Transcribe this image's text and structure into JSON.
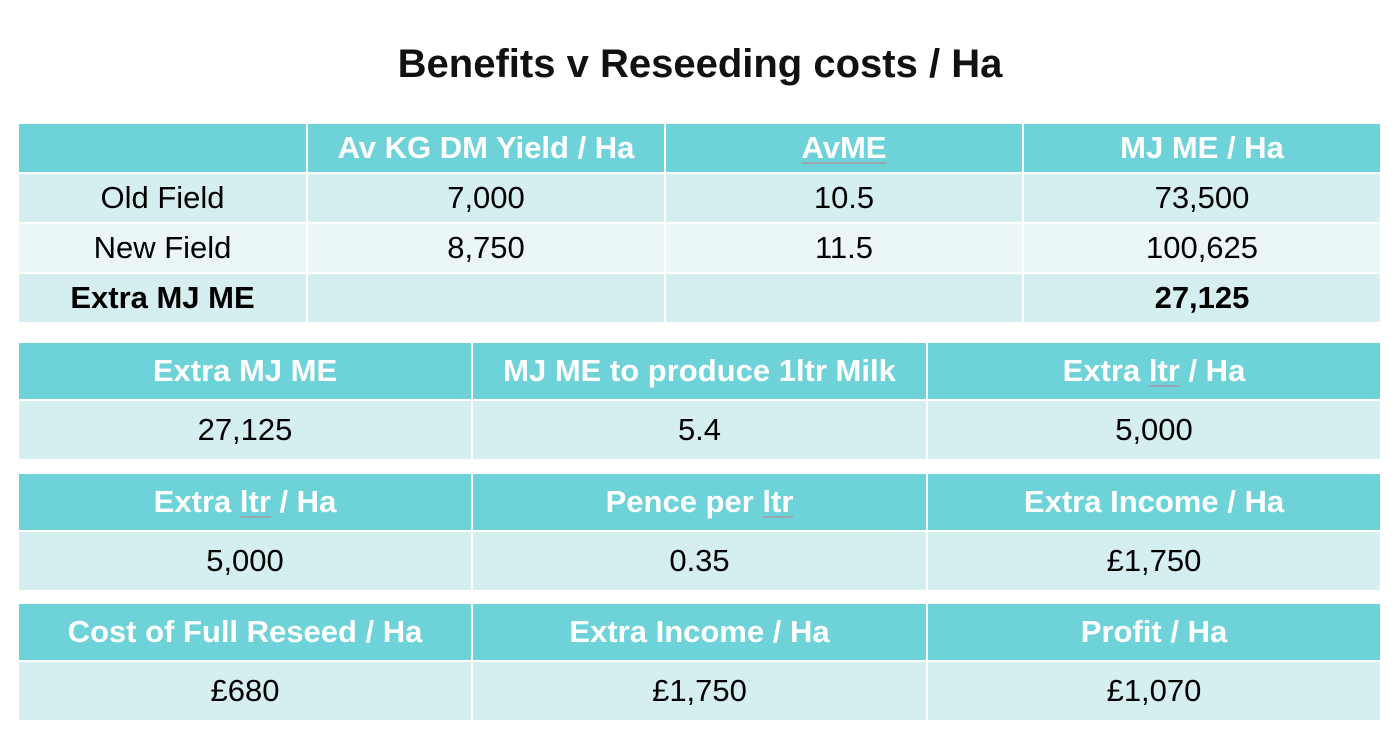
{
  "title": "Benefits v Reseeding costs / Ha",
  "colors": {
    "header_bg": "#6dd3d8",
    "row_dark": "#d5eeef",
    "row_light": "#eaf6f7"
  },
  "table1": {
    "headers": [
      "",
      "Av KG DM Yield / Ha",
      "AvME",
      "MJ ME / Ha"
    ],
    "rows": [
      [
        "Old Field",
        "7,000",
        "10.5",
        "73,500"
      ],
      [
        "New Field",
        "8,750",
        "11.5",
        "100,625"
      ],
      [
        "Extra MJ ME",
        "",
        "",
        "27,125"
      ]
    ]
  },
  "table2": {
    "headers": [
      "Extra MJ ME",
      "MJ ME to produce 1ltr Milk",
      "Extra ltr / Ha"
    ],
    "values": [
      "27,125",
      "5.4",
      "5,000"
    ]
  },
  "table3": {
    "headers": [
      "Extra ltr / Ha",
      "Pence per ltr",
      "Extra Income / Ha"
    ],
    "values": [
      "5,000",
      "0.35",
      "£1,750"
    ]
  },
  "table4": {
    "headers": [
      "Cost of Full Reseed / Ha",
      "Extra Income / Ha",
      "Profit / Ha"
    ],
    "values": [
      "£680",
      "£1,750",
      "£1,070"
    ]
  }
}
